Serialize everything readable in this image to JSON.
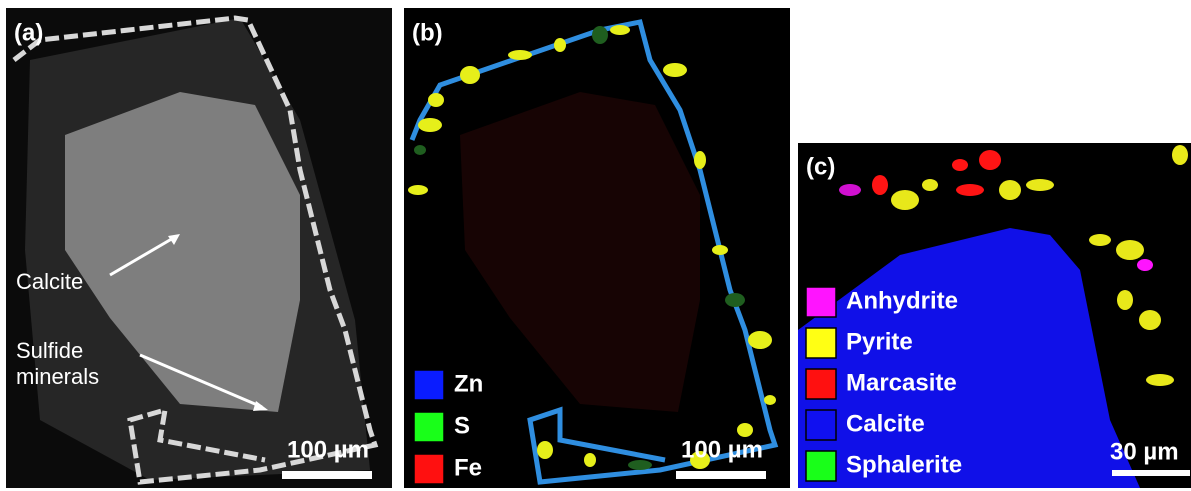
{
  "panels": [
    {
      "label": "(a)",
      "annotations": [
        "Calcite",
        "Sulfide",
        "minerals"
      ],
      "scale_bar": "100 µm"
    },
    {
      "label": "(b)",
      "legend": [
        {
          "name": "Zn",
          "color": "#0a1cff"
        },
        {
          "name": "S",
          "color": "#19ff19"
        },
        {
          "name": "Fe",
          "color": "#ff1010"
        }
      ],
      "scale_bar": "100 µm"
    },
    {
      "label": "(c)",
      "legend": [
        {
          "name": "Anhydrite",
          "color": "#ff14ff"
        },
        {
          "name": "Pyrite",
          "color": "#ffff14"
        },
        {
          "name": "Marcasite",
          "color": "#ff1010"
        },
        {
          "name": "Calcite",
          "color": "#1010f0"
        },
        {
          "name": "Sphalerite",
          "color": "#19ff19"
        }
      ],
      "scale_bar": "30 µm"
    }
  ]
}
